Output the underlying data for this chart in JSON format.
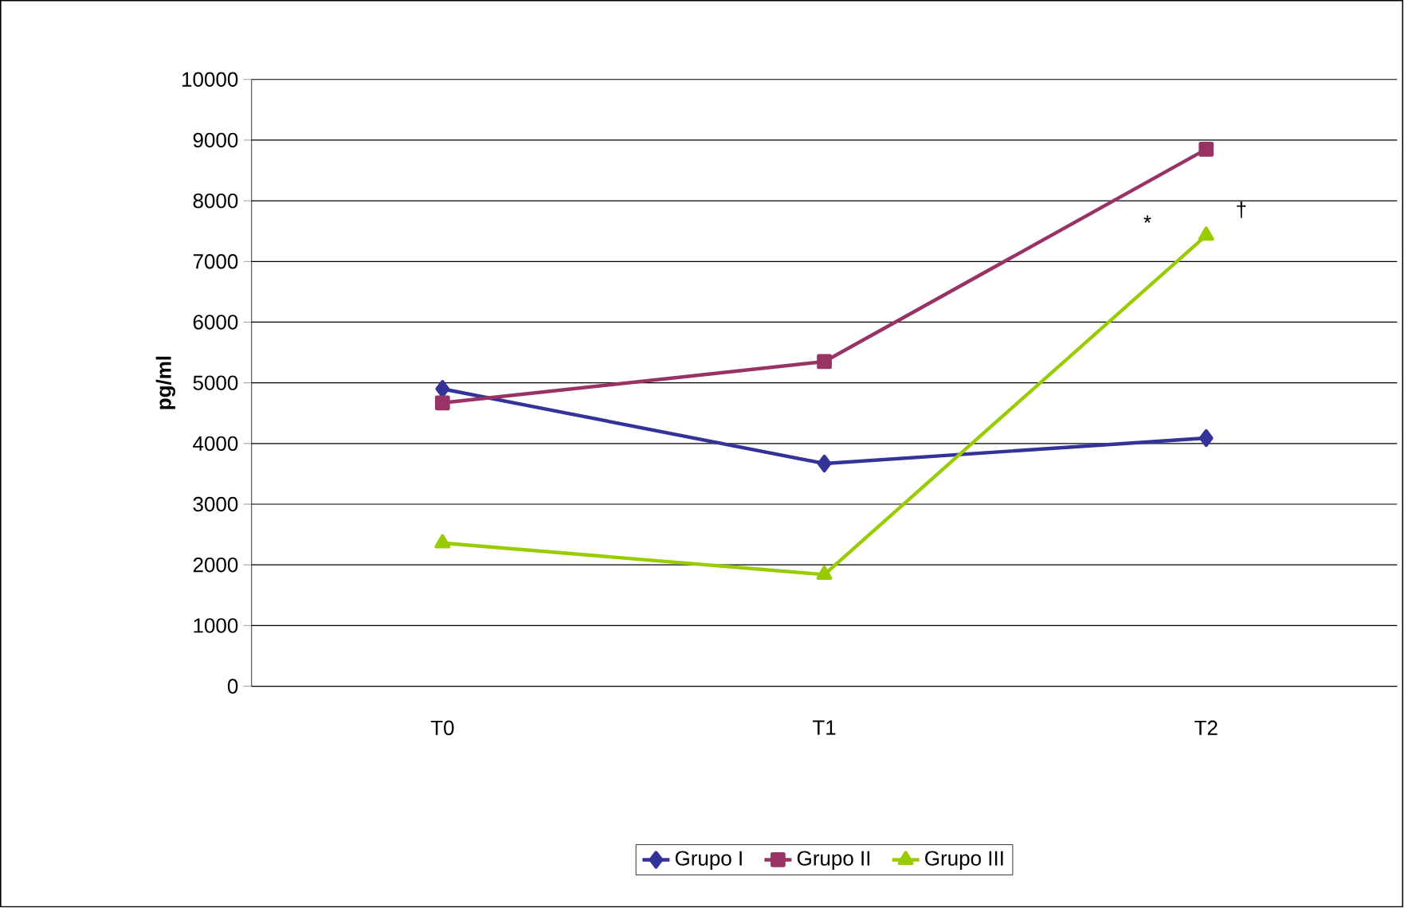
{
  "chart_data": {
    "type": "line",
    "ylabel": "pg/ml",
    "categories": [
      "T0",
      "T1",
      "T2"
    ],
    "series": [
      {
        "name": "Grupo I",
        "color": "#333399",
        "marker": "diamond",
        "values": [
          4900,
          3670,
          4090
        ]
      },
      {
        "name": "Grupo II",
        "color": "#993366",
        "marker": "square",
        "values": [
          4670,
          5350,
          8850
        ]
      },
      {
        "name": "Grupo III",
        "color": "#99cc00",
        "marker": "triangle",
        "values": [
          2360,
          1840,
          7430
        ]
      }
    ],
    "ylim": [
      0,
      10000
    ],
    "yticks": [
      0,
      1000,
      2000,
      3000,
      4000,
      5000,
      6000,
      7000,
      8000,
      9000,
      10000
    ],
    "grid": "y",
    "legend": "bottom",
    "annotations": [
      "*",
      "†"
    ]
  }
}
